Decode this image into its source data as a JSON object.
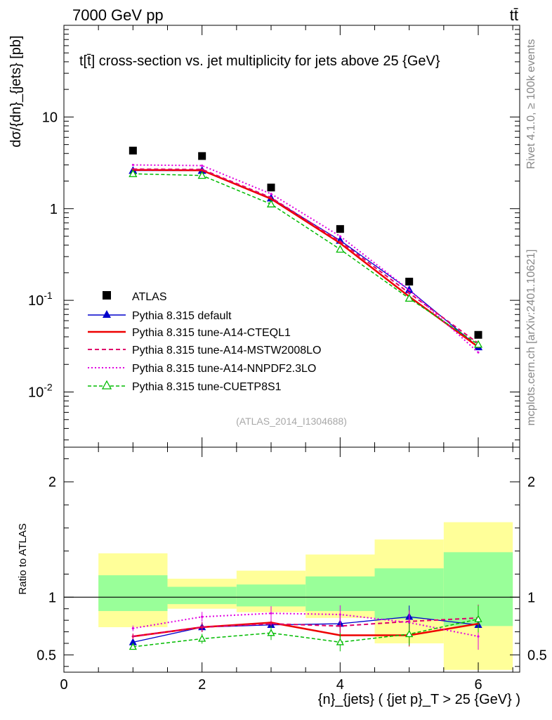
{
  "header": {
    "energy_label": "7000 GeV pp",
    "process_label": "tt̄"
  },
  "side": {
    "rivet": "Rivet 4.1.0, ≥ 100k events",
    "mcplots": "mcplots.cern.ch [arXiv:2401.10621]"
  },
  "chart_data": [
    {
      "type": "scatter",
      "panel": "main",
      "title": "t[t̄] cross-section vs. jet multiplicity for jets above 25 {GeV}",
      "ylabel": "dσ/{dn}_{jets} [pb]",
      "yscale": "log",
      "ylim": [
        0.0025,
        100
      ],
      "xlim": [
        0,
        6.6
      ],
      "ytick_labels": [
        "10^{-2}",
        "10^{-1}",
        "1",
        "10"
      ],
      "analysis_tag": "(ATLAS_2014_I1304688)",
      "x": [
        1,
        2,
        3,
        4,
        5,
        6
      ],
      "series": [
        {
          "name": "ATLAS",
          "color": "#000000",
          "style": "marker-square",
          "values": [
            4.3,
            3.75,
            1.7,
            0.6,
            0.16,
            0.042
          ]
        },
        {
          "name": "Pythia 8.315 default",
          "color": "#0000cc",
          "style": "solid-triangle",
          "values": [
            2.6,
            2.6,
            1.3,
            0.45,
            0.13,
            0.031
          ]
        },
        {
          "name": "Pythia 8.315 tune-A14-CTEQL1",
          "color": "#ee0000",
          "style": "solid-thick",
          "values": [
            2.65,
            2.62,
            1.28,
            0.42,
            0.11,
            0.031
          ]
        },
        {
          "name": "Pythia 8.315 tune-A14-MSTW2008LO",
          "color": "#e0006a",
          "style": "dashed",
          "values": [
            2.7,
            2.68,
            1.32,
            0.44,
            0.12,
            0.034
          ]
        },
        {
          "name": "Pythia 8.315 tune-A14-NNPDF2.3LO",
          "color": "#e000e0",
          "style": "dotted",
          "values": [
            3.0,
            2.95,
            1.45,
            0.5,
            0.13,
            0.027
          ]
        },
        {
          "name": "Pythia 8.315 tune-CUETP8S1",
          "color": "#00bb00",
          "style": "dashed-open-triangle",
          "values": [
            2.4,
            2.3,
            1.12,
            0.36,
            0.105,
            0.033
          ]
        }
      ]
    },
    {
      "type": "line",
      "panel": "ratio",
      "ylabel": "Ratio to ATLAS",
      "xlabel": "{n}_{jets} ( {jet p}_T > 25 {GeV} )",
      "ylim": [
        0.35,
        2.3
      ],
      "xlim": [
        0,
        6.6
      ],
      "x_tick_labels": [
        "0",
        "2",
        "4",
        "6"
      ],
      "y_tick_labels": [
        "0.5",
        "1",
        "2"
      ],
      "bands": [
        {
          "xlo": 0.5,
          "xhi": 1.5,
          "inner": [
            0.88,
            1.19
          ],
          "outer": [
            0.74,
            1.38
          ]
        },
        {
          "xlo": 1.5,
          "xhi": 2.5,
          "inner": [
            0.94,
            1.09
          ],
          "outer": [
            0.9,
            1.16
          ]
        },
        {
          "xlo": 2.5,
          "xhi": 3.5,
          "inner": [
            0.92,
            1.11
          ],
          "outer": [
            0.87,
            1.23
          ]
        },
        {
          "xlo": 3.5,
          "xhi": 4.5,
          "inner": [
            0.88,
            1.18
          ],
          "outer": [
            0.82,
            1.37
          ]
        },
        {
          "xlo": 4.5,
          "xhi": 5.5,
          "inner": [
            0.81,
            1.25
          ],
          "outer": [
            0.6,
            1.5
          ]
        },
        {
          "xlo": 5.5,
          "xhi": 6.5,
          "inner": [
            0.75,
            1.39
          ],
          "outer": [
            0.37,
            1.65
          ]
        }
      ],
      "series": [
        {
          "name": "Pythia 8.315 default",
          "color": "#0000cc",
          "values": [
            0.61,
            0.74,
            0.76,
            0.77,
            0.83,
            0.76
          ]
        },
        {
          "name": "Pythia 8.315 tune-A14-CTEQL1",
          "color": "#ee0000",
          "values": [
            0.66,
            0.74,
            0.78,
            0.67,
            0.67,
            0.77
          ]
        },
        {
          "name": "Pythia 8.315 tune-A14-MSTW2008LO",
          "color": "#e0006a",
          "values": [
            0.66,
            0.74,
            0.77,
            0.75,
            0.79,
            0.82
          ]
        },
        {
          "name": "Pythia 8.315 tune-A14-NNPDF2.3LO",
          "color": "#e000e0",
          "values": [
            0.73,
            0.83,
            0.86,
            0.85,
            0.78,
            0.66
          ]
        },
        {
          "name": "Pythia 8.315 tune-CUETP8S1",
          "color": "#00bb00",
          "values": [
            0.57,
            0.64,
            0.69,
            0.61,
            0.68,
            0.81
          ]
        }
      ]
    }
  ]
}
